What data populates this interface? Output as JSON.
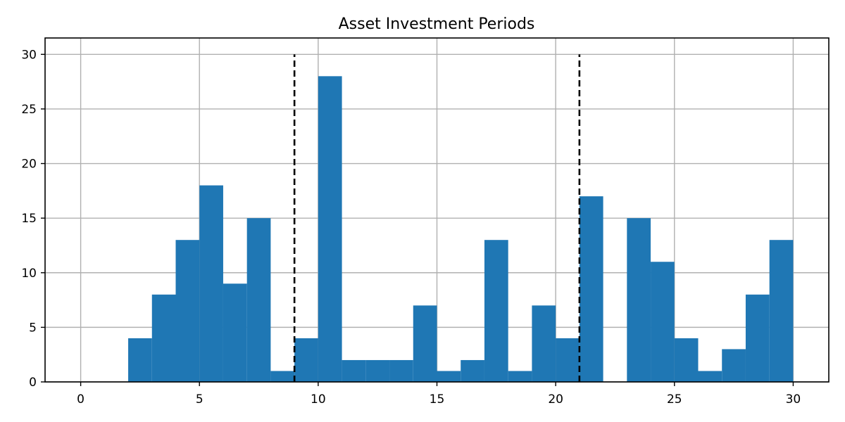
{
  "chart_data": {
    "type": "bar",
    "title": "Asset Investment Periods",
    "xlabel": "",
    "ylabel": "",
    "bar_color": "#1f77b4",
    "grid": true,
    "bins": [
      {
        "start": 2,
        "end": 3,
        "count": 4
      },
      {
        "start": 3,
        "end": 4,
        "count": 8
      },
      {
        "start": 4,
        "end": 5,
        "count": 13
      },
      {
        "start": 5,
        "end": 6,
        "count": 18
      },
      {
        "start": 6,
        "end": 7,
        "count": 9
      },
      {
        "start": 7,
        "end": 8,
        "count": 15
      },
      {
        "start": 8,
        "end": 9,
        "count": 1
      },
      {
        "start": 9,
        "end": 10,
        "count": 4
      },
      {
        "start": 10,
        "end": 11,
        "count": 28
      },
      {
        "start": 11,
        "end": 12,
        "count": 2
      },
      {
        "start": 12,
        "end": 13,
        "count": 2
      },
      {
        "start": 13,
        "end": 14,
        "count": 2
      },
      {
        "start": 14,
        "end": 15,
        "count": 7
      },
      {
        "start": 15,
        "end": 16,
        "count": 1
      },
      {
        "start": 16,
        "end": 17,
        "count": 2
      },
      {
        "start": 17,
        "end": 18,
        "count": 13
      },
      {
        "start": 18,
        "end": 19,
        "count": 1
      },
      {
        "start": 19,
        "end": 20,
        "count": 7
      },
      {
        "start": 20,
        "end": 21,
        "count": 4
      },
      {
        "start": 21,
        "end": 22,
        "count": 17
      },
      {
        "start": 22,
        "end": 23,
        "count": 0
      },
      {
        "start": 23,
        "end": 24,
        "count": 15
      },
      {
        "start": 24,
        "end": 25,
        "count": 11
      },
      {
        "start": 25,
        "end": 26,
        "count": 4
      },
      {
        "start": 26,
        "end": 27,
        "count": 1
      },
      {
        "start": 27,
        "end": 28,
        "count": 3
      },
      {
        "start": 28,
        "end": 29,
        "count": 8
      },
      {
        "start": 29,
        "end": 30,
        "count": 13
      }
    ],
    "vertical_lines": [
      {
        "x": 9,
        "y_max": 30,
        "style": "dashed",
        "color": "#000000"
      },
      {
        "x": 21,
        "y_max": 30,
        "style": "dashed",
        "color": "#000000"
      }
    ],
    "xlim": [
      -1.5,
      31.5
    ],
    "ylim": [
      0,
      31.5
    ],
    "x_ticks": [
      0,
      5,
      10,
      15,
      20,
      25,
      30
    ],
    "y_ticks": [
      0,
      5,
      10,
      15,
      20,
      25,
      30
    ]
  }
}
